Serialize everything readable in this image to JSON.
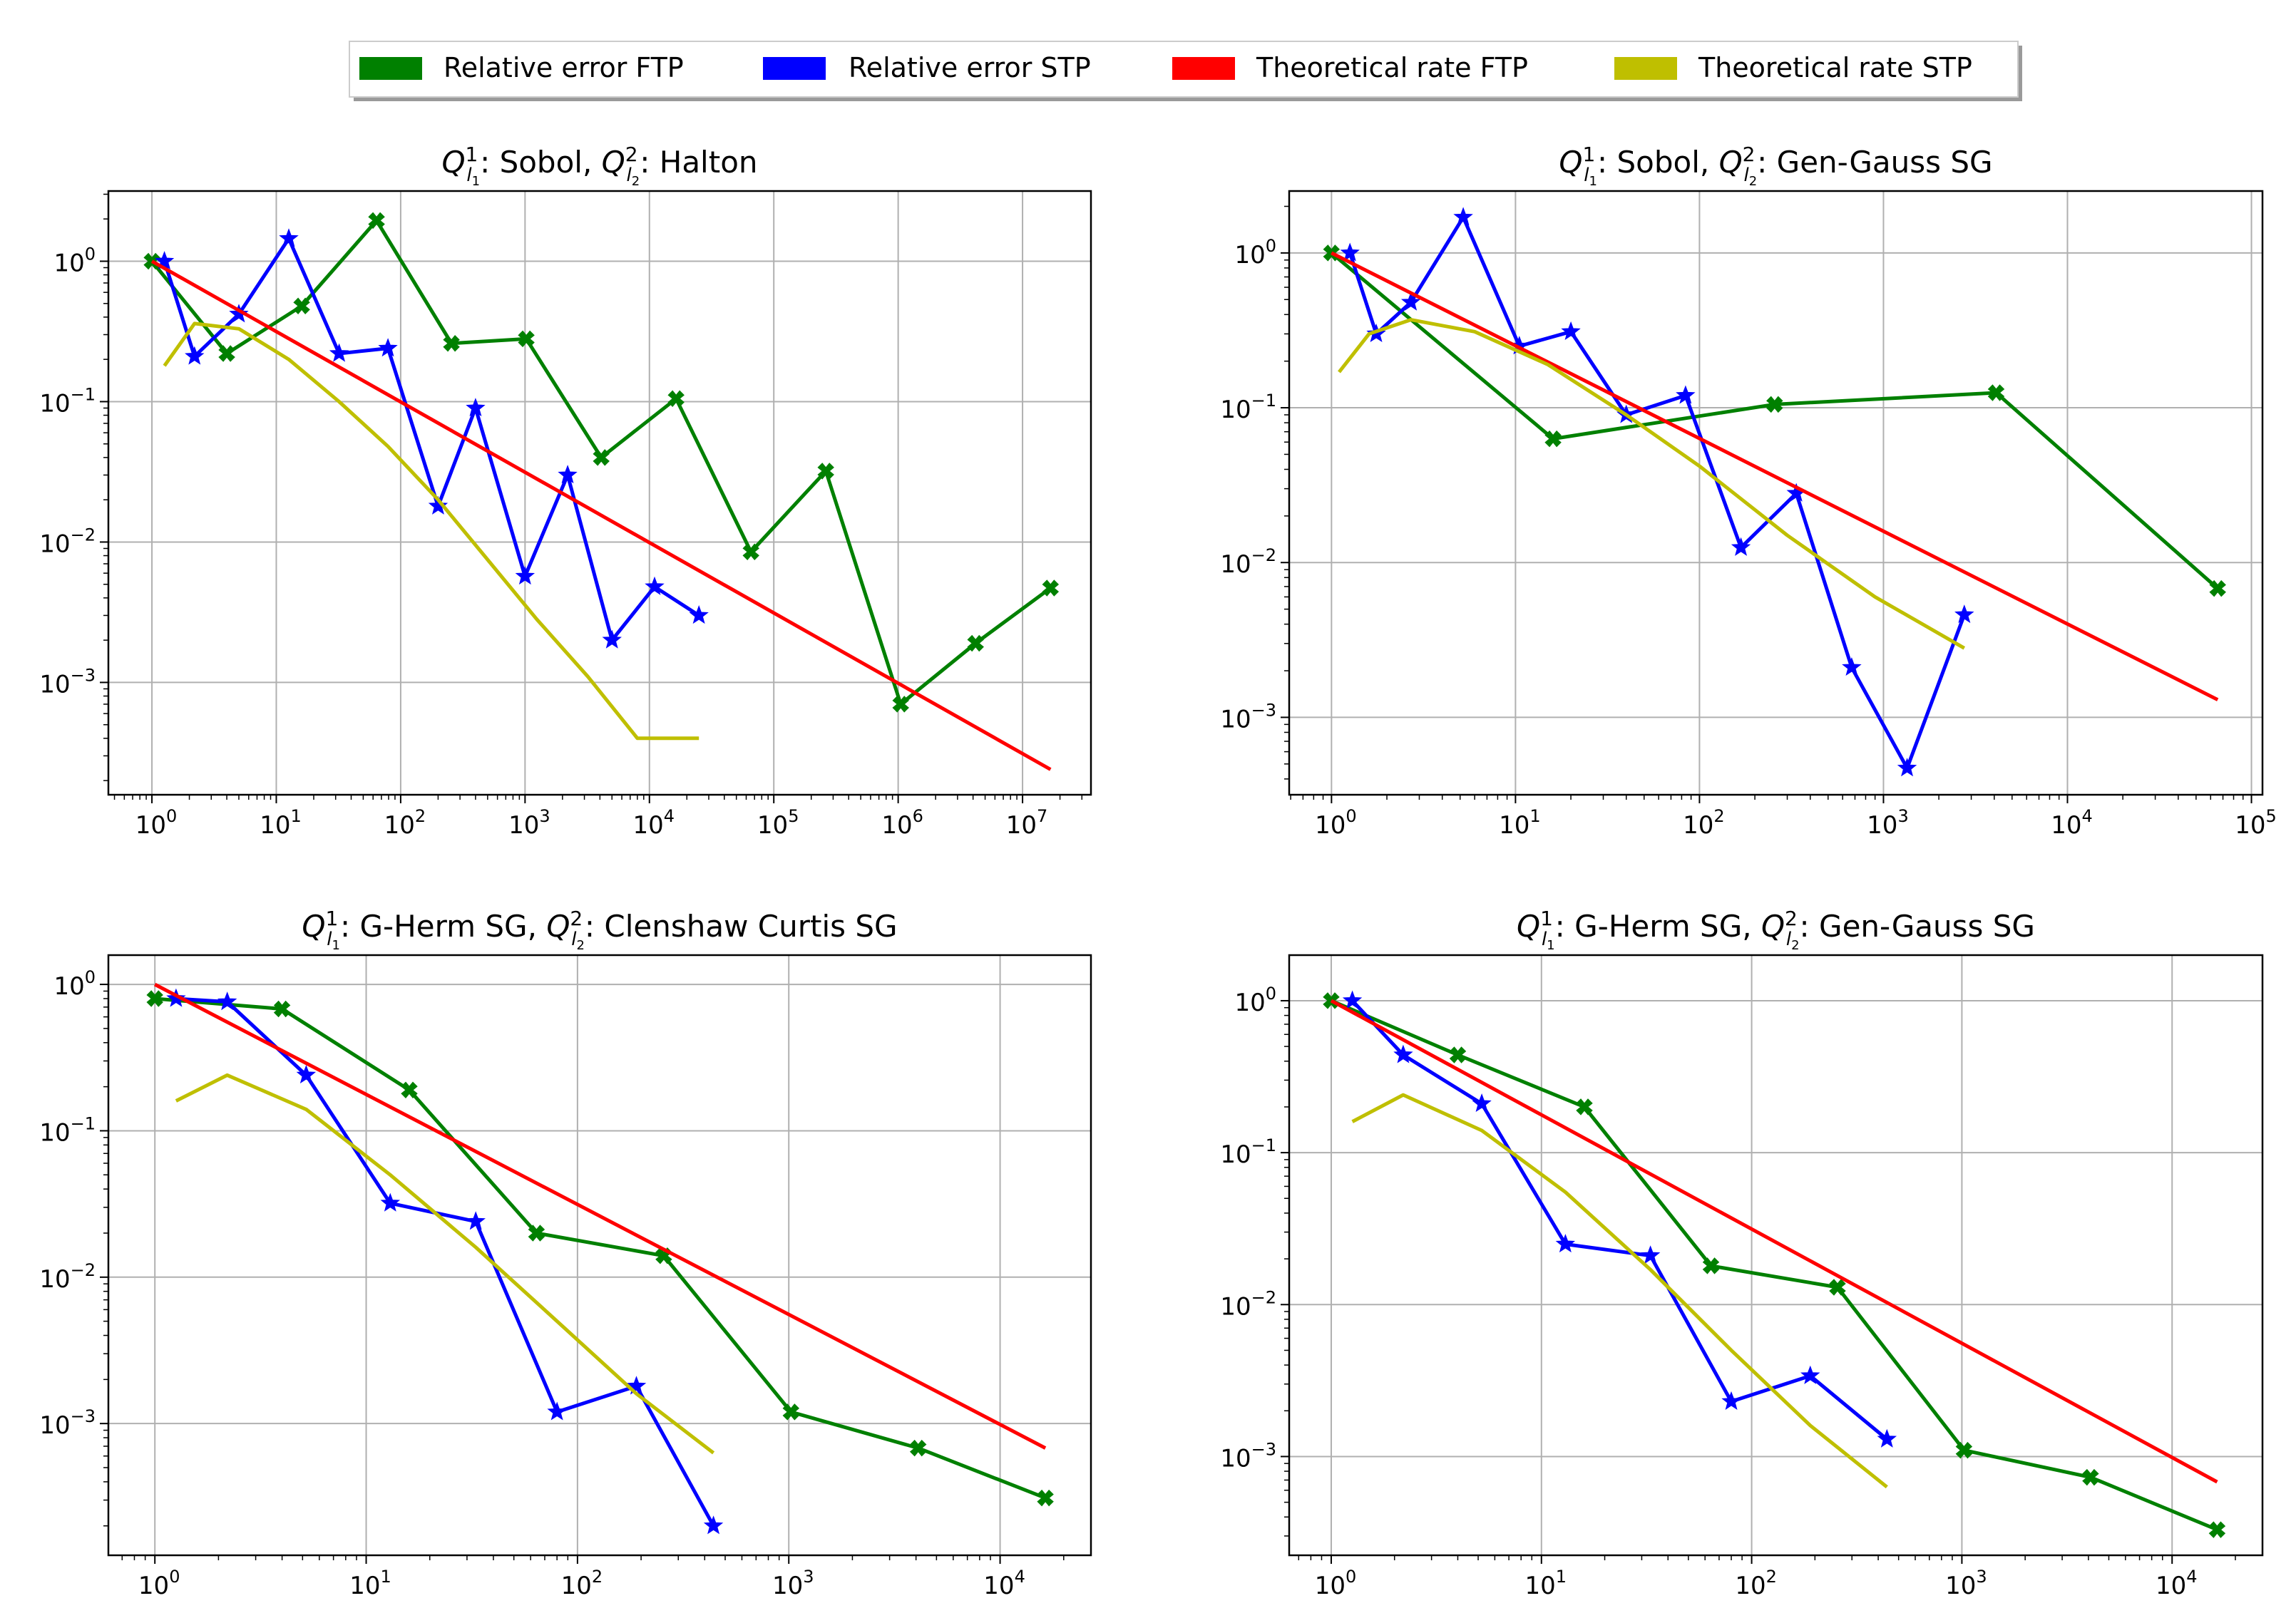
{
  "legend": {
    "items": [
      {
        "label": "Relative error FTP",
        "color": "#008000"
      },
      {
        "label": "Relative error STP",
        "color": "#0000ff"
      },
      {
        "label": "Theoretical rate FTP",
        "color": "#ff0000"
      },
      {
        "label": "Theoretical rate STP",
        "color": "#bfbf00"
      }
    ]
  },
  "chart_data": [
    {
      "type": "line",
      "title": {
        "q1_method": "Sobol",
        "q2_method": "Halton"
      },
      "xscale": "log",
      "yscale": "log",
      "xlim_log10": [
        -0.35,
        7.55
      ],
      "ylim_log10": [
        -3.8,
        0.5
      ],
      "xtick_exponents": [
        "0",
        "1",
        "2",
        "3",
        "4",
        "5",
        "6",
        "7"
      ],
      "ytick_exponents": [
        "0",
        "−1",
        "−2",
        "−3"
      ],
      "grid": true,
      "series": [
        {
          "name": "Relative error FTP",
          "color": "#008000",
          "marker": "X",
          "x": [
            1,
            4,
            16,
            64,
            256,
            1024,
            4096,
            16384,
            65536,
            262144,
            1048576,
            4194304,
            16777216
          ],
          "y": [
            1.0,
            0.22,
            0.48,
            1.95,
            0.26,
            0.28,
            0.04,
            0.105,
            0.0085,
            0.032,
            0.0007,
            0.0019,
            0.0047
          ]
        },
        {
          "name": "Relative error STP",
          "color": "#0000ff",
          "marker": "*",
          "x": [
            1.26,
            2.2,
            5.0,
            12.6,
            32,
            79,
            200,
            400,
            1000,
            2200,
            5000,
            11000,
            25000
          ],
          "y": [
            1.0,
            0.21,
            0.42,
            1.45,
            0.22,
            0.24,
            0.018,
            0.09,
            0.0057,
            0.03,
            0.002,
            0.0048,
            0.003
          ]
        },
        {
          "name": "Theoretical rate FTP",
          "color": "#ff0000",
          "marker": "none",
          "x": [
            1,
            16777216
          ],
          "y": [
            1.0,
            0.00024
          ]
        },
        {
          "name": "Theoretical rate STP",
          "color": "#bfbf00",
          "marker": "none",
          "x": [
            1.26,
            2.2,
            5.0,
            12.6,
            32,
            79,
            200,
            500,
            1250,
            3200,
            8000,
            25000
          ],
          "y": [
            0.18,
            0.36,
            0.33,
            0.2,
            0.1,
            0.048,
            0.02,
            0.0075,
            0.0028,
            0.0011,
            0.0004,
            0.0004
          ]
        }
      ]
    },
    {
      "type": "line",
      "title": {
        "q1_method": "Sobol",
        "q2_method": "Gen-Gauss SG"
      },
      "xscale": "log",
      "yscale": "log",
      "xlim_log10": [
        -0.23,
        5.06
      ],
      "ylim_log10": [
        -3.5,
        0.4
      ],
      "xtick_exponents": [
        "0",
        "1",
        "2",
        "3",
        "4",
        "5"
      ],
      "ytick_exponents": [
        "0",
        "−1",
        "−2",
        "−3"
      ],
      "grid": true,
      "series": [
        {
          "name": "Relative error FTP",
          "color": "#008000",
          "marker": "X",
          "x": [
            1,
            16,
            256,
            4096,
            65536
          ],
          "y": [
            1.0,
            0.063,
            0.105,
            0.125,
            0.0068
          ]
        },
        {
          "name": "Relative error STP",
          "color": "#0000ff",
          "marker": "*",
          "x": [
            1.26,
            1.75,
            2.7,
            5.2,
            10.5,
            20,
            40,
            84,
            168,
            336,
            672,
            1344,
            2750
          ],
          "y": [
            1.0,
            0.3,
            0.48,
            1.7,
            0.25,
            0.31,
            0.09,
            0.12,
            0.0125,
            0.028,
            0.0021,
            0.00047,
            0.0046
          ]
        },
        {
          "name": "Theoretical rate FTP",
          "color": "#ff0000",
          "marker": "none",
          "x": [
            1,
            65536
          ],
          "y": [
            1.0,
            0.0013
          ]
        },
        {
          "name": "Theoretical rate STP",
          "color": "#bfbf00",
          "marker": "none",
          "x": [
            1.1,
            1.6,
            2.7,
            6.0,
            15,
            40,
            100,
            300,
            900,
            2750
          ],
          "y": [
            0.17,
            0.3,
            0.37,
            0.31,
            0.19,
            0.09,
            0.042,
            0.015,
            0.006,
            0.0028
          ]
        }
      ]
    },
    {
      "type": "line",
      "title": {
        "q1_method": "G-Herm SG",
        "q2_method": "Clenshaw Curtis SG"
      },
      "xscale": "log",
      "yscale": "log",
      "xlim_log10": [
        -0.22,
        4.43
      ],
      "ylim_log10": [
        -3.9,
        0.2
      ],
      "xtick_exponents": [
        "0",
        "1",
        "2",
        "3",
        "4"
      ],
      "ytick_exponents": [
        "0",
        "−1",
        "−2",
        "−3"
      ],
      "grid": true,
      "series": [
        {
          "name": "Relative error FTP",
          "color": "#008000",
          "marker": "X",
          "x": [
            1,
            4,
            16,
            64,
            256,
            1024,
            4096,
            16384
          ],
          "y": [
            0.8,
            0.68,
            0.19,
            0.02,
            0.014,
            0.0012,
            0.00068,
            0.00031
          ]
        },
        {
          "name": "Relative error STP",
          "color": "#0000ff",
          "marker": "*",
          "x": [
            1.26,
            2.2,
            5.2,
            13,
            33,
            80,
            190,
            440
          ],
          "y": [
            0.8,
            0.76,
            0.24,
            0.032,
            0.024,
            0.0012,
            0.0018,
            0.0002
          ]
        },
        {
          "name": "Theoretical rate FTP",
          "color": "#ff0000",
          "marker": "none",
          "x": [
            1,
            16384
          ],
          "y": [
            1.0,
            0.00068
          ]
        },
        {
          "name": "Theoretical rate STP",
          "color": "#bfbf00",
          "marker": "none",
          "x": [
            1.26,
            2.2,
            5.2,
            13,
            33,
            80,
            190,
            440
          ],
          "y": [
            0.16,
            0.24,
            0.14,
            0.05,
            0.016,
            0.005,
            0.0016,
            0.00063
          ]
        }
      ]
    },
    {
      "type": "line",
      "title": {
        "q1_method": "G-Herm SG",
        "q2_method": "Gen-Gauss SG"
      },
      "xscale": "log",
      "yscale": "log",
      "xlim_log10": [
        -0.2,
        4.43
      ],
      "ylim_log10": [
        -3.65,
        0.3
      ],
      "xtick_exponents": [
        "0",
        "1",
        "2",
        "3",
        "4"
      ],
      "ytick_exponents": [
        "0",
        "−1",
        "−2",
        "−3"
      ],
      "grid": true,
      "series": [
        {
          "name": "Relative error FTP",
          "color": "#008000",
          "marker": "X",
          "x": [
            1,
            4,
            16,
            64,
            256,
            1024,
            4096,
            16384
          ],
          "y": [
            1.0,
            0.44,
            0.2,
            0.018,
            0.013,
            0.0011,
            0.00073,
            0.00033
          ]
        },
        {
          "name": "Relative error STP",
          "color": "#0000ff",
          "marker": "*",
          "x": [
            1.26,
            2.2,
            5.2,
            13,
            33,
            80,
            190,
            440
          ],
          "y": [
            1.0,
            0.44,
            0.21,
            0.025,
            0.021,
            0.0023,
            0.0034,
            0.0013
          ]
        },
        {
          "name": "Theoretical rate FTP",
          "color": "#ff0000",
          "marker": "none",
          "x": [
            1,
            16384
          ],
          "y": [
            1.0,
            0.00068
          ]
        },
        {
          "name": "Theoretical rate STP",
          "color": "#bfbf00",
          "marker": "none",
          "x": [
            1.26,
            2.2,
            5.2,
            13,
            33,
            80,
            190,
            440
          ],
          "y": [
            0.16,
            0.24,
            0.14,
            0.055,
            0.017,
            0.005,
            0.0016,
            0.00063
          ]
        }
      ]
    }
  ]
}
